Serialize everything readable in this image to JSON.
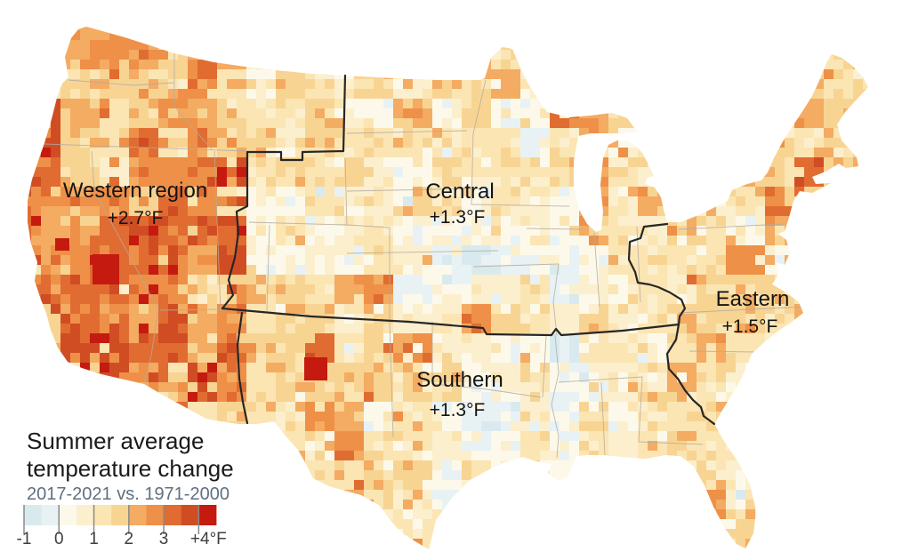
{
  "map": {
    "name": "United States summer temperature change choropleth",
    "regions": [
      {
        "id": "western",
        "name": "Western region",
        "value": "+2.7°F"
      },
      {
        "id": "central",
        "name": "Central",
        "value": "+1.3°F"
      },
      {
        "id": "southern",
        "name": "Southern",
        "value": "+1.3°F"
      },
      {
        "id": "eastern",
        "name": "Eastern",
        "value": "+1.5°F"
      }
    ]
  },
  "legend": {
    "title_line1": "Summer average",
    "title_line2": "temperature change",
    "subtitle": "2017-2021 vs. 1971-2000",
    "ticks": [
      "-1",
      "0",
      "1",
      "2",
      "3",
      "+4°F"
    ],
    "range_f": [
      -1,
      4
    ],
    "bin_size_f": 0.5,
    "colors": [
      "#d9eaef",
      "#e8f2f5",
      "#fdf9ea",
      "#fcefcd",
      "#fbe5b3",
      "#f8d493",
      "#f4ab62",
      "#ee9048",
      "#e06c31",
      "#d04d24",
      "#c51a0f"
    ],
    "tick_line_color": "#8a8a8a",
    "boundary_color": "#262626",
    "state_line_color": "#b3aca1"
  }
}
